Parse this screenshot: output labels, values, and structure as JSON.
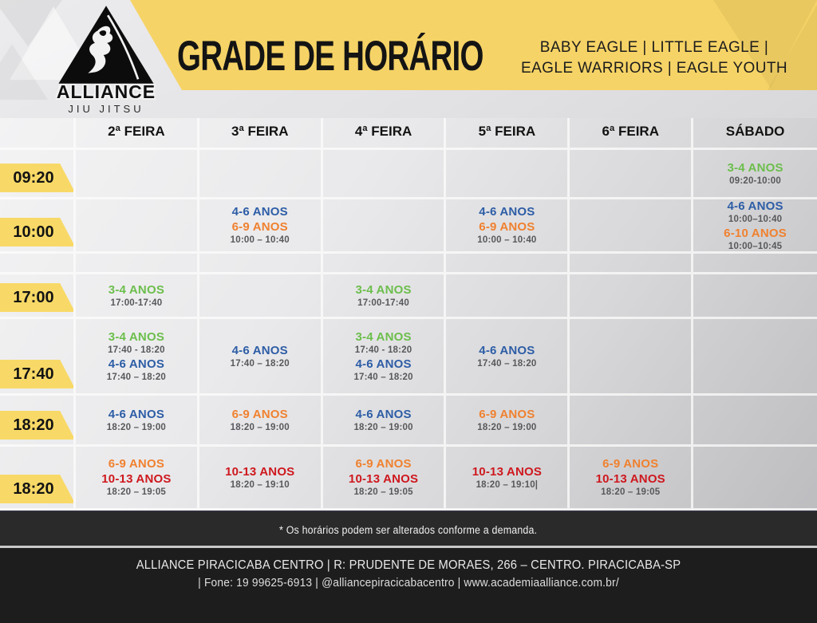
{
  "header": {
    "title": "GRADE DE HORÁRIO",
    "programs_line1": "BABY EAGLE | LITTLE EAGLE |",
    "programs_line2": "EAGLE WARRIORS | EAGLE YOUTH",
    "logo_name": "ALLIANCE",
    "logo_sub": "JIU JITSU"
  },
  "colors": {
    "banner_yellow": "#f6d366",
    "chip_yellow": "#f8d967",
    "green": "#6cbe4c",
    "blue": "#2d5da6",
    "orange": "#f0812f",
    "red": "#ce181e",
    "time_gray": "#57585b"
  },
  "schedule": {
    "days": [
      "2ª FEIRA",
      "3ª FEIRA",
      "4ª FEIRA",
      "5ª FEIRA",
      "6ª FEIRA",
      "SÁBADO"
    ],
    "rows": [
      {
        "time": "09:20",
        "cells": [
          [],
          [],
          [],
          [],
          [],
          [
            {
              "label": "3-4 ANOS",
              "color": "green"
            },
            {
              "time": "09:20-10:00"
            }
          ]
        ]
      },
      {
        "time": "10:00",
        "cells": [
          [],
          [
            {
              "label": "4-6 ANOS",
              "color": "blue"
            },
            {
              "label": "6-9 ANOS",
              "color": "orange"
            },
            {
              "time": "10:00 – 10:40"
            }
          ],
          [],
          [
            {
              "label": "4-6 ANOS",
              "color": "blue"
            },
            {
              "label": "6-9 ANOS",
              "color": "orange"
            },
            {
              "time": "10:00 – 10:40"
            }
          ],
          [],
          [
            {
              "label": "4-6 ANOS",
              "color": "blue"
            },
            {
              "time": "10:00–10:40"
            },
            {
              "label": "6-10 ANOS",
              "color": "orange"
            },
            {
              "time": "10:00–10:45"
            }
          ]
        ]
      },
      {
        "time": "",
        "cells": [
          [],
          [],
          [],
          [],
          [],
          []
        ]
      },
      {
        "time": "17:00",
        "cells": [
          [
            {
              "label": "3-4 ANOS",
              "color": "green"
            },
            {
              "time": "17:00-17:40"
            }
          ],
          [],
          [
            {
              "label": "3-4 ANOS",
              "color": "green"
            },
            {
              "time": "17:00-17:40"
            }
          ],
          [],
          [],
          []
        ]
      },
      {
        "time": "17:40",
        "cells": [
          [
            {
              "label": "3-4 ANOS",
              "color": "green"
            },
            {
              "time": "17:40 - 18:20"
            },
            {
              "label": "4-6 ANOS",
              "color": "blue"
            },
            {
              "time": "17:40 – 18:20"
            }
          ],
          [
            {
              "label": "4-6 ANOS",
              "color": "blue"
            },
            {
              "time": "17:40 – 18:20"
            }
          ],
          [
            {
              "label": "3-4 ANOS",
              "color": "green"
            },
            {
              "time": "17:40 - 18:20"
            },
            {
              "label": "4-6 ANOS",
              "color": "blue"
            },
            {
              "time": "17:40 – 18:20"
            }
          ],
          [
            {
              "label": "4-6 ANOS",
              "color": "blue"
            },
            {
              "time": "17:40 – 18:20"
            }
          ],
          [],
          []
        ]
      },
      {
        "time": "18:20",
        "cells": [
          [
            {
              "label": "4-6 ANOS",
              "color": "blue"
            },
            {
              "time": "18:20 – 19:00"
            }
          ],
          [
            {
              "label": "6-9 ANOS",
              "color": "orange"
            },
            {
              "time": "18:20 – 19:00"
            }
          ],
          [
            {
              "label": "4-6 ANOS",
              "color": "blue"
            },
            {
              "time": "18:20 – 19:00"
            }
          ],
          [
            {
              "label": "6-9 ANOS",
              "color": "orange"
            },
            {
              "time": "18:20 – 19:00"
            }
          ],
          [],
          []
        ]
      },
      {
        "time": "18:20",
        "cells": [
          [
            {
              "label": "6-9 ANOS",
              "color": "orange"
            },
            {
              "label": "10-13 ANOS",
              "color": "red"
            },
            {
              "time": "18:20 – 19:05"
            }
          ],
          [
            {
              "label": "10-13 ANOS",
              "color": "red"
            },
            {
              "time": "18:20 – 19:10"
            }
          ],
          [
            {
              "label": "6-9 ANOS",
              "color": "orange"
            },
            {
              "label": "10-13 ANOS",
              "color": "red"
            },
            {
              "time": "18:20 – 19:05"
            }
          ],
          [
            {
              "label": "10-13 ANOS",
              "color": "red"
            },
            {
              "time": "18:20 – 19:10|"
            }
          ],
          [
            {
              "label": "6-9 ANOS",
              "color": "orange"
            },
            {
              "label": "10-13 ANOS",
              "color": "red"
            },
            {
              "time": "18:20 – 19:05"
            }
          ],
          []
        ]
      }
    ]
  },
  "note": "* Os horários podem ser alterados conforme a demanda.",
  "footer": {
    "line1": "ALLIANCE PIRACICABA CENTRO  |  R: PRUDENTE DE MORAES, 266 – CENTRO. PIRACICABA-SP",
    "line2": "| Fone: 19 99625-6913 | @alliancepiracicabacentro  | www.academiaalliance.com.br/"
  }
}
